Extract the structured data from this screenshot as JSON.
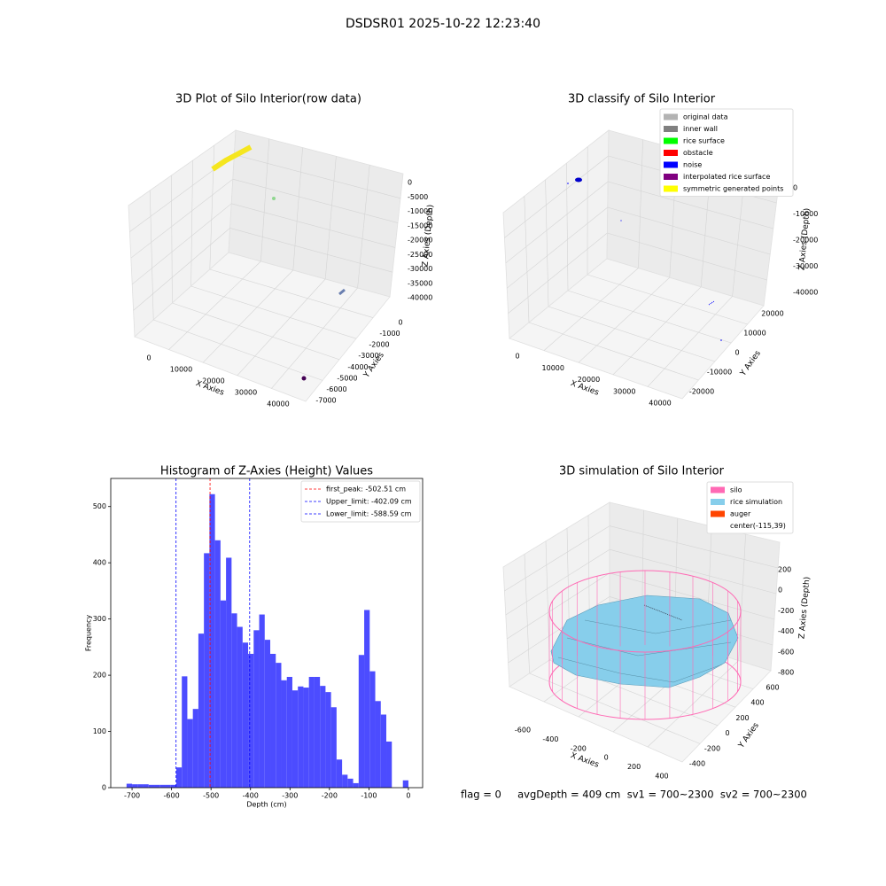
{
  "title": "DSDSR01 2025-10-22 12:23:40",
  "footer": "flag = 0     avgDepth = 409 cm  sv1 = 700~2300  sv2 = 700~2300",
  "chart_data": [
    {
      "type": "scatter3d",
      "title": "3D Plot of Silo Interior(row data)",
      "xlabel": "X Axies",
      "ylabel": "Y Axies",
      "zlabel": "Z Axies (Depth)",
      "xticks": [
        0,
        10000,
        20000,
        30000,
        40000
      ],
      "yticks": [
        0,
        -1000,
        -2000,
        -3000,
        -4000,
        -5000,
        -6000,
        -7000
      ],
      "zticks": [
        0,
        -5000,
        -10000,
        -15000,
        -20000,
        -25000,
        -30000,
        -35000,
        -40000
      ]
    },
    {
      "type": "scatter3d",
      "title": "3D classify of Silo Interior",
      "xlabel": "X Axies",
      "ylabel": "Y Axies",
      "zlabel": "Z Axies (Depth)",
      "xticks": [
        0,
        10000,
        20000,
        30000,
        40000
      ],
      "yticks": [
        20000,
        10000,
        0,
        -10000,
        -20000
      ],
      "zticks": [
        0,
        -10000,
        -20000,
        -30000,
        -40000
      ],
      "legend": [
        {
          "name": "original data",
          "color": "#b3b3b3"
        },
        {
          "name": "inner wall",
          "color": "#808080"
        },
        {
          "name": "rice surface",
          "color": "#00ff00"
        },
        {
          "name": "obstacle",
          "color": "#ff0000"
        },
        {
          "name": "noise",
          "color": "#0000ff"
        },
        {
          "name": "interpolated rice surface",
          "color": "#800080"
        },
        {
          "name": "symmetric generated points",
          "color": "#ffff00"
        }
      ]
    },
    {
      "type": "histogram",
      "title": "Histogram of Z-Axies (Height) Values",
      "xlabel": "Depth (cm)",
      "ylabel": "Frequency",
      "color": "#4c4cff",
      "bins": [
        -714,
        -700,
        -686,
        -672,
        -658,
        -644,
        -630,
        -616,
        -602,
        -588,
        -574,
        -560,
        -546,
        -532,
        -518,
        -504,
        -490,
        -476,
        -462,
        -448,
        -434,
        -420,
        -406,
        -392,
        -378,
        -364,
        -350,
        -336,
        -322,
        -308,
        -294,
        -280,
        -266,
        -252,
        -238,
        -224,
        -210,
        -196,
        -182,
        -168,
        -154,
        -140,
        -126,
        -112,
        -98,
        -84,
        -70,
        -56,
        -42,
        -28,
        -14,
        0
      ],
      "values": [
        7,
        6,
        6,
        6,
        5,
        5,
        5,
        5,
        5,
        36,
        198,
        122,
        140,
        274,
        417,
        522,
        440,
        333,
        409,
        310,
        286,
        258,
        238,
        280,
        308,
        263,
        238,
        222,
        191,
        197,
        173,
        180,
        178,
        197,
        197,
        181,
        170,
        143,
        50,
        23,
        16,
        8,
        236,
        316,
        207,
        154,
        130,
        82,
        0,
        0,
        13
      ],
      "xlim": [
        -754,
        36
      ],
      "ylim": [
        0,
        550
      ],
      "xticks": [
        -700,
        -600,
        -500,
        -400,
        -300,
        -200,
        -100,
        0
      ],
      "yticks": [
        0,
        100,
        200,
        300,
        400,
        500
      ],
      "vlines": [
        {
          "name": "first_peak: -502.51 cm",
          "value": -502.51,
          "color": "#ff0000"
        },
        {
          "name": "Upper_limit: -402.09 cm",
          "value": -402.09,
          "color": "#0000ff"
        },
        {
          "name": "Lower_limit: -588.59 cm",
          "value": -588.59,
          "color": "#0000ff"
        }
      ]
    },
    {
      "type": "surface3d",
      "title": "3D simulation of Silo Interior",
      "xlabel": "X Axies",
      "ylabel": "Y Axies",
      "zlabel": "Z Axies (Depth)",
      "xticks": [
        -600,
        -400,
        -200,
        0,
        200,
        400
      ],
      "yticks": [
        600,
        400,
        200,
        0,
        -200,
        -400
      ],
      "zticks": [
        200,
        0,
        -200,
        -400,
        -600,
        -800
      ],
      "legend": [
        {
          "name": "silo",
          "color": "#ff69b4"
        },
        {
          "name": "rice simulation",
          "color": "#87ceeb"
        },
        {
          "name": "auger",
          "color": "#ff4500"
        },
        {
          "name": "center(-115,39)",
          "color": "#ffffff"
        }
      ]
    }
  ]
}
